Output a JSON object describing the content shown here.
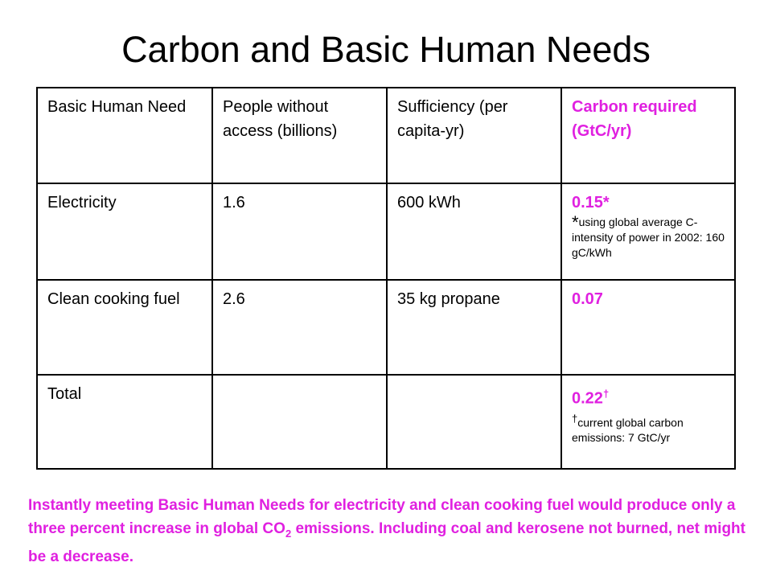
{
  "title": "Carbon and Basic Human Needs",
  "table": {
    "header": [
      "Basic Human Need",
      "People without access (billions)",
      "Sufficiency (per capita-yr)",
      "Carbon required (GtC/yr)"
    ],
    "rows": [
      {
        "need": "Electricity",
        "people": "1.6",
        "sufficiency": "600 kWh",
        "carbon": "0.15*",
        "note_mark": "*",
        "note": "using global average C-intensity of power in 2002: 160 gC/kWh"
      },
      {
        "need": "Clean cooking fuel",
        "people": "2.6",
        "sufficiency": "35 kg propane",
        "carbon": "0.07"
      },
      {
        "need": "Total",
        "carbon": "0.22",
        "carbon_mark": "†",
        "note_mark": "†",
        "note": "current global carbon emissions: 7 GtC/yr"
      }
    ]
  },
  "footer": {
    "before": "Instantly meeting Basic Human Needs for electricity and clean cooking fuel would produce only a three percent increase in global CO",
    "subscript": "2",
    "after": " emissions. Including coal and kerosene not burned, net might be a decrease."
  }
}
